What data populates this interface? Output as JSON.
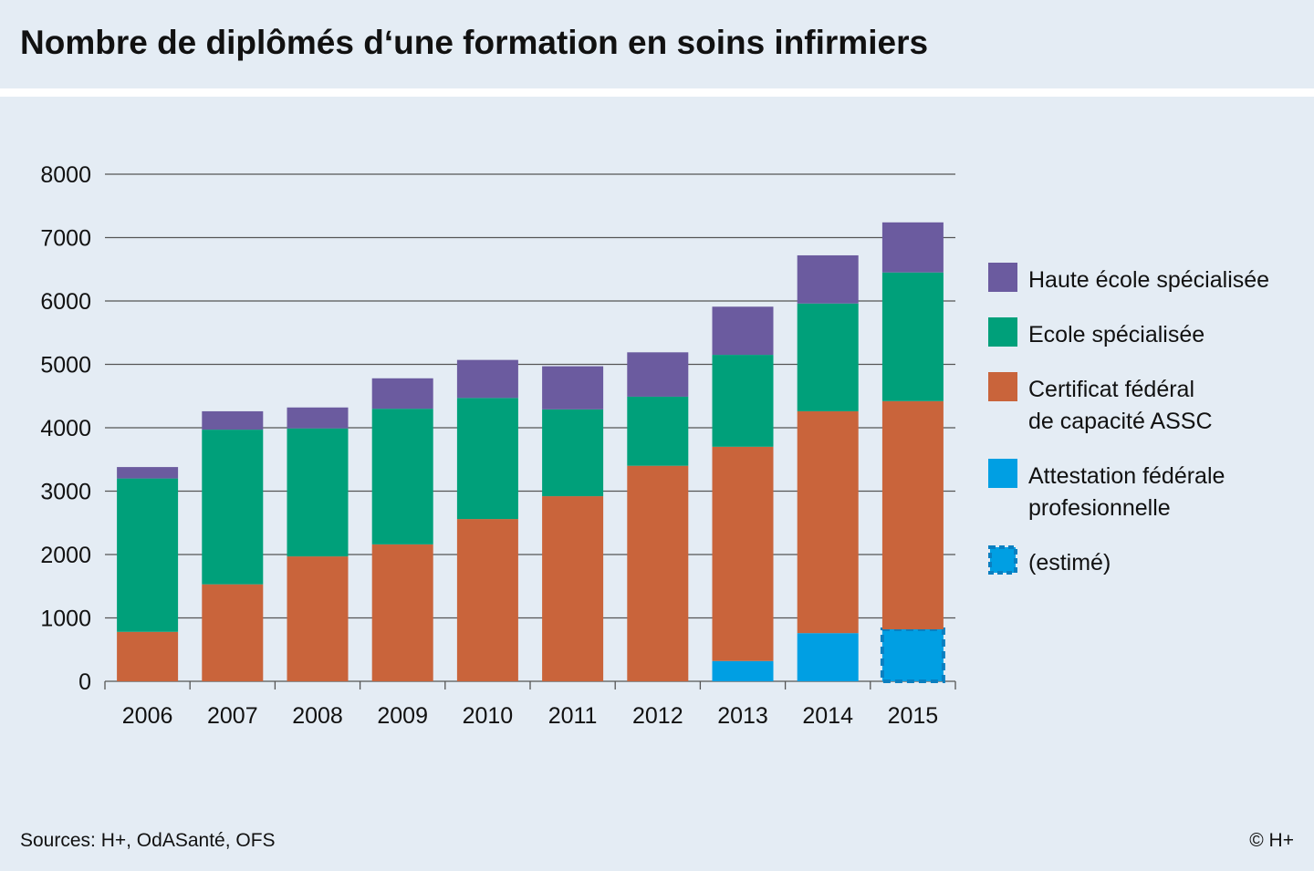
{
  "title": "Nombre de diplômés d‘une formation en soins infirmiers",
  "source": "Sources: H+, OdASanté, OFS",
  "copyright": "© H+",
  "colors": {
    "hes": "#6b5b9f",
    "es": "#00a07a",
    "cfc": "#c9643b",
    "afp": "#009fe3",
    "grid": "#555555"
  },
  "chart_data": {
    "type": "bar",
    "stacked": true,
    "title": "Nombre de diplômés d‘une formation en soins infirmiers",
    "xlabel": "",
    "ylabel": "",
    "ylim": [
      0,
      8000
    ],
    "yticks": [
      "0",
      "1000",
      "2000",
      "3000",
      "4000",
      "5000",
      "6000",
      "7000",
      "8000"
    ],
    "grid": true,
    "legend_position": "right",
    "categories": [
      "2006",
      "2007",
      "2008",
      "2009",
      "2010",
      "2011",
      "2012",
      "2013",
      "2014",
      "2015"
    ],
    "series": [
      {
        "key": "afp",
        "name": "Attestation fédérale profesionnelle",
        "legend_lines": [
          "Attestation fédérale",
          "profesionnelle"
        ],
        "values": [
          0,
          0,
          0,
          0,
          0,
          0,
          0,
          320,
          760,
          820
        ],
        "estimated": [
          false,
          false,
          false,
          false,
          false,
          false,
          false,
          false,
          false,
          true
        ]
      },
      {
        "key": "cfc",
        "name": "Certificat fédéral de capacité ASSC",
        "legend_lines": [
          "Certificat fédéral",
          "de capacité ASSC"
        ],
        "values": [
          780,
          1530,
          1970,
          2160,
          2560,
          2920,
          3400,
          3380,
          3500,
          3600
        ]
      },
      {
        "key": "es",
        "name": "Ecole spécialisée",
        "legend_lines": [
          "Ecole spécialisée"
        ],
        "values": [
          2420,
          2440,
          2020,
          2140,
          1910,
          1370,
          1090,
          1450,
          1700,
          2030
        ]
      },
      {
        "key": "hes",
        "name": "Haute école spécialisée",
        "legend_lines": [
          "Haute école spécialisée"
        ],
        "values": [
          180,
          290,
          330,
          480,
          600,
          680,
          700,
          760,
          760,
          790
        ]
      }
    ],
    "legend_order": [
      "hes",
      "es",
      "cfc",
      "afp",
      "estimated"
    ],
    "estimated_label": "(estimé)"
  }
}
